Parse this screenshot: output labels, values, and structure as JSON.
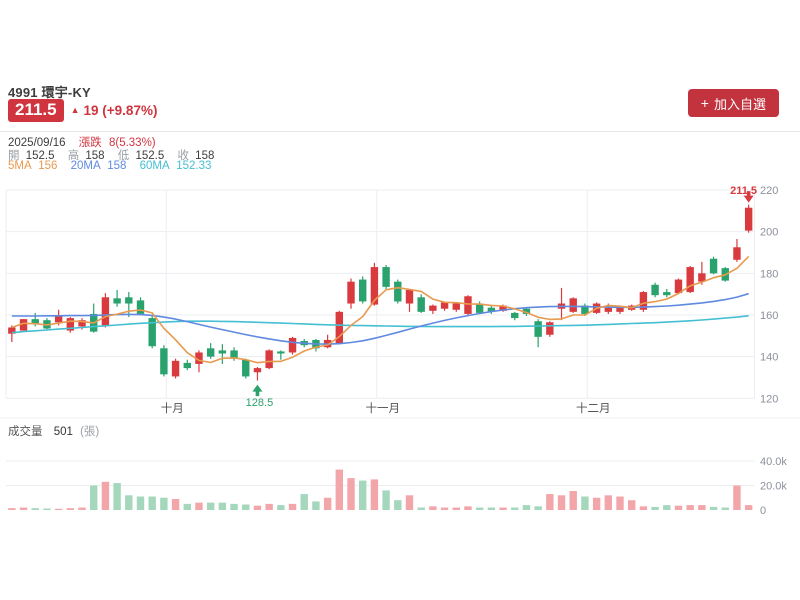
{
  "header": {
    "symbol": "4991 環宇-KY",
    "price": "211.5",
    "change_arrow": "▲",
    "change_text": "19 (+9.87%)",
    "date": "2025/09/16",
    "change_label": "漲跌",
    "change_value": "8(5.33%)",
    "ohlc": [
      {
        "label": "開",
        "value": "152.5"
      },
      {
        "label": "高",
        "value": "158"
      },
      {
        "label": "低",
        "value": "152.5"
      },
      {
        "label": "收",
        "value": "158"
      }
    ],
    "ma_legend": [
      {
        "label": "5MA",
        "value": "156",
        "color": "#e89a4f"
      },
      {
        "label": "20MA",
        "value": "158",
        "color": "#5f8ae0"
      },
      {
        "label": "60MA",
        "value": "152.33",
        "color": "#45bfd2"
      }
    ],
    "add_button": {
      "icon": "+",
      "label": "加入自選"
    }
  },
  "volume_header": {
    "label": "成交量",
    "value": "501",
    "unit": "(張)"
  },
  "colors": {
    "accent_red": "#d0353f",
    "badge_red": "#d0353f",
    "button_red": "#c2333e",
    "text_dark": "#3d3d3d",
    "text_gray": "#9aa0a6"
  },
  "chart_data": {
    "type": "candlestick",
    "title": "4991 環宇-KY 日K線",
    "y_axis": {
      "min": 120,
      "max": 220,
      "ticks": [
        220,
        200,
        180,
        160,
        140,
        120
      ]
    },
    "volume_axis": {
      "ticks": [
        {
          "label": "40.0k",
          "value": 40
        },
        {
          "label": "20.0k",
          "value": 20
        },
        {
          "label": "0",
          "value": 0
        }
      ]
    },
    "x_axis": {
      "labels": [
        "十月",
        "十一月",
        "十二月"
      ],
      "boundaries": [
        13.7,
        31.7,
        49.7
      ]
    },
    "annotations": {
      "last_price": "211.5",
      "low_label": "128.5",
      "low_index": 21,
      "low_value": 128.5,
      "last_index": 63,
      "last_high": 213
    },
    "candles": [
      [
        151,
        155,
        147,
        154
      ],
      [
        152.5,
        158,
        152.5,
        158
      ],
      [
        158,
        161,
        154.5,
        155.5
      ],
      [
        157.5,
        158.5,
        153,
        153.5
      ],
      [
        156.5,
        162.5,
        155,
        159.5
      ],
      [
        152.5,
        159,
        151.5,
        158.5
      ],
      [
        154.5,
        158.5,
        153,
        157.5
      ],
      [
        160.5,
        165.5,
        151.5,
        152
      ],
      [
        155,
        170.5,
        154,
        168.5
      ],
      [
        168,
        172,
        164,
        165.5
      ],
      [
        168.5,
        171,
        159,
        165.5
      ],
      [
        167,
        168.5,
        160,
        160.5
      ],
      [
        158.5,
        159.5,
        144,
        145
      ],
      [
        144,
        145.5,
        130.5,
        131.5
      ],
      [
        130.5,
        139,
        129.5,
        138
      ],
      [
        137,
        138.5,
        133.5,
        134.5
      ],
      [
        136.5,
        143,
        132.5,
        142
      ],
      [
        144,
        146.5,
        139,
        140
      ],
      [
        143,
        146,
        136.5,
        141.5
      ],
      [
        143,
        144.5,
        138,
        139
      ],
      [
        138.5,
        139,
        129.5,
        130.5
      ],
      [
        132.5,
        135,
        128.5,
        134.5
      ],
      [
        134.5,
        143.5,
        134,
        143
      ],
      [
        142.5,
        143,
        138.5,
        141.5
      ],
      [
        142,
        149.5,
        141,
        149
      ],
      [
        147.5,
        148.5,
        144.5,
        145.5
      ],
      [
        148,
        148.5,
        142.5,
        144
      ],
      [
        144.5,
        150.5,
        144,
        148
      ],
      [
        146.5,
        162,
        146,
        161.5
      ],
      [
        165.5,
        177.5,
        163,
        176
      ],
      [
        177,
        178.5,
        165.5,
        166.5
      ],
      [
        165,
        185,
        164.5,
        183
      ],
      [
        183,
        184,
        172.5,
        173.5
      ],
      [
        176,
        177,
        165.5,
        166.5
      ],
      [
        165.5,
        172.5,
        161.5,
        172
      ],
      [
        168.5,
        170,
        161,
        161.5
      ],
      [
        162,
        165,
        160.5,
        164.5
      ],
      [
        163,
        166.5,
        162,
        166
      ],
      [
        162.5,
        166,
        161.5,
        165.5
      ],
      [
        160.5,
        169.5,
        160,
        169
      ],
      [
        165.5,
        166.5,
        160.5,
        161
      ],
      [
        163.5,
        164.5,
        160.5,
        161.5
      ],
      [
        162,
        165,
        161.5,
        164.5
      ],
      [
        161,
        161.5,
        157.5,
        158.5
      ],
      [
        163,
        163.5,
        159.5,
        160.5
      ],
      [
        157,
        158,
        144.5,
        149.5
      ],
      [
        150.5,
        157,
        149.5,
        156.5
      ],
      [
        163,
        173,
        157.5,
        165.5
      ],
      [
        161.5,
        168.5,
        161,
        168
      ],
      [
        164.5,
        165.5,
        159.5,
        160.5
      ],
      [
        161,
        166,
        160.5,
        165.5
      ],
      [
        161.5,
        165.5,
        160.5,
        163.5
      ],
      [
        161.5,
        164,
        160.5,
        163.5
      ],
      [
        162.5,
        165,
        162,
        164.5
      ],
      [
        162.5,
        171.5,
        161.5,
        171
      ],
      [
        174.5,
        175.5,
        168.5,
        169.5
      ],
      [
        171,
        172.5,
        168.5,
        169.5
      ],
      [
        170.5,
        177.5,
        170,
        177
      ],
      [
        171,
        183.5,
        170.5,
        183
      ],
      [
        176,
        185.5,
        174.5,
        180
      ],
      [
        187,
        188,
        179.5,
        180
      ],
      [
        182.5,
        183,
        176,
        176.5
      ],
      [
        186.5,
        196.5,
        185.5,
        192.5
      ],
      [
        200.5,
        213,
        199.5,
        211.5
      ]
    ],
    "volumes": [
      1.5,
      2,
      1.5,
      1.2,
      1,
      1.5,
      2,
      20,
      23,
      22,
      12,
      11,
      11,
      10,
      9,
      5,
      6,
      6,
      6,
      5,
      4.5,
      3.5,
      5,
      4,
      5,
      13,
      7,
      10,
      33,
      26,
      24,
      25,
      16,
      8,
      12,
      2,
      3,
      2,
      2,
      3,
      2,
      2,
      2,
      2,
      4,
      3,
      13,
      12,
      15.5,
      11,
      10,
      12,
      11,
      8,
      3,
      2.5,
      4,
      3.5,
      4,
      4,
      2.5,
      2,
      20,
      4
    ],
    "ma20": [
      159.5,
      159.5,
      159.5,
      159.6,
      159.6,
      159.7,
      159.7,
      159.8,
      160,
      160.2,
      160.3,
      160.2,
      159.8,
      159,
      158,
      156.8,
      155.5,
      154.2,
      153,
      151.8,
      150.6,
      149.5,
      148.5,
      147.6,
      146.9,
      146.4,
      146.1,
      146,
      146.2,
      146.8,
      147.6,
      148.8,
      150.2,
      151.7,
      153.2,
      154.7,
      156.1,
      157.4,
      158.6,
      159.7,
      160.7,
      161.6,
      162.4,
      163,
      163.5,
      163.8,
      164,
      164.1,
      164.1,
      164,
      163.9,
      163.8,
      163.7,
      163.7,
      163.8,
      164,
      164.3,
      164.7,
      165.2,
      165.8,
      166.5,
      167.4,
      168.6,
      170.2
    ],
    "ma60": [
      151.5,
      152,
      152.4,
      152.8,
      153.2,
      153.6,
      154,
      154.4,
      154.8,
      155.2,
      155.6,
      156,
      156.3,
      156.6,
      156.8,
      157,
      157,
      157,
      156.9,
      156.8,
      156.7,
      156.5,
      156.3,
      156.1,
      155.9,
      155.7,
      155.5,
      155.3,
      155.1,
      155,
      154.9,
      154.8,
      154.7,
      154.6,
      154.5,
      154.5,
      154.4,
      154.4,
      154.4,
      154.4,
      154.4,
      154.4,
      154.5,
      154.5,
      154.6,
      154.7,
      154.8,
      154.9,
      155,
      155.1,
      155.3,
      155.5,
      155.7,
      155.9,
      156.1,
      156.3,
      156.6,
      156.9,
      157.2,
      157.6,
      158,
      158.5,
      159,
      159.6
    ],
    "colors": {
      "up": "#d93a3e",
      "down": "#2aa26d",
      "vol_up": "#f3a6aa",
      "vol_down": "#a5d7bd",
      "ma5": "#e89a4f",
      "ma20": "#5f8ae0",
      "ma60": "#45bfd2",
      "grid": "#ebedf1",
      "axis_text": "#8b909b",
      "month_text": "#555555"
    }
  }
}
